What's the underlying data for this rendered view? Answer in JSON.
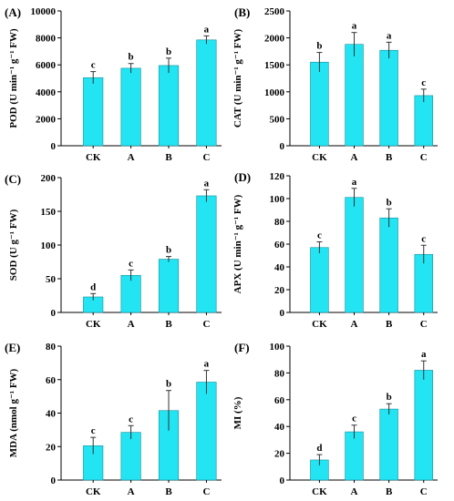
{
  "chart_data": [
    {
      "type": "bar",
      "panel": "(A)",
      "ylabel": "POD (U min⁻¹ g⁻¹ FW)",
      "categories": [
        "CK",
        "A",
        "B",
        "C"
      ],
      "values": [
        5050,
        5750,
        5950,
        7850
      ],
      "errors": [
        450,
        350,
        550,
        300
      ],
      "letters": [
        "c",
        "b",
        "b",
        "a"
      ],
      "ylim": [
        0,
        10000
      ],
      "yticks": [
        "0",
        "2000",
        "4000",
        "6000",
        "8000",
        "10000"
      ],
      "color": "#22e4f2"
    },
    {
      "type": "bar",
      "panel": "(B)",
      "ylabel": "CAT (U min⁻¹ g⁻¹ FW)",
      "categories": [
        "CK",
        "A",
        "B",
        "C"
      ],
      "values": [
        1550,
        1880,
        1770,
        930
      ],
      "errors": [
        180,
        220,
        150,
        120
      ],
      "letters": [
        "b",
        "a",
        "a",
        "c"
      ],
      "ylim": [
        0,
        2500
      ],
      "yticks": [
        "0",
        "500",
        "1000",
        "1500",
        "2000",
        "2500"
      ],
      "color": "#22e4f2"
    },
    {
      "type": "bar",
      "panel": "(C)",
      "ylabel": "SOD (U g⁻¹ FW)",
      "categories": [
        "CK",
        "A",
        "B",
        "C"
      ],
      "values": [
        23,
        55,
        79,
        173
      ],
      "errors": [
        5,
        8,
        4,
        9
      ],
      "letters": [
        "d",
        "c",
        "b",
        "a"
      ],
      "ylim": [
        0,
        200
      ],
      "yticks": [
        "0",
        "50",
        "100",
        "150",
        "200"
      ],
      "color": "#22e4f2"
    },
    {
      "type": "bar",
      "panel": "(D)",
      "ylabel": "APX (U min⁻¹ g⁻¹ FW)",
      "categories": [
        "CK",
        "A",
        "B",
        "C"
      ],
      "values": [
        57,
        101,
        83,
        51
      ],
      "errors": [
        5,
        8,
        8,
        8
      ],
      "letters": [
        "c",
        "a",
        "b",
        "c"
      ],
      "ylim": [
        0,
        120
      ],
      "yticks": [
        "0",
        "20",
        "40",
        "60",
        "80",
        "100",
        "120"
      ],
      "color": "#22e4f2"
    },
    {
      "type": "bar",
      "panel": "(E)",
      "ylabel": "MDA (nmol g⁻¹ FW)",
      "categories": [
        "CK",
        "A",
        "B",
        "C"
      ],
      "values": [
        20.5,
        28.5,
        41.5,
        58.5
      ],
      "errors": [
        5,
        4,
        12,
        7
      ],
      "letters": [
        "c",
        "c",
        "b",
        "a"
      ],
      "ylim": [
        0,
        80
      ],
      "yticks": [
        "0",
        "20",
        "40",
        "60",
        "80"
      ],
      "color": "#22e4f2"
    },
    {
      "type": "bar",
      "panel": "(F)",
      "ylabel": "MI (%)",
      "categories": [
        "CK",
        "A",
        "B",
        "C"
      ],
      "values": [
        15,
        36,
        53,
        82
      ],
      "errors": [
        4,
        5,
        4,
        7
      ],
      "letters": [
        "d",
        "c",
        "b",
        "a"
      ],
      "ylim": [
        0,
        100
      ],
      "yticks": [
        "0",
        "20",
        "40",
        "60",
        "80",
        "100"
      ],
      "color": "#22e4f2"
    }
  ]
}
